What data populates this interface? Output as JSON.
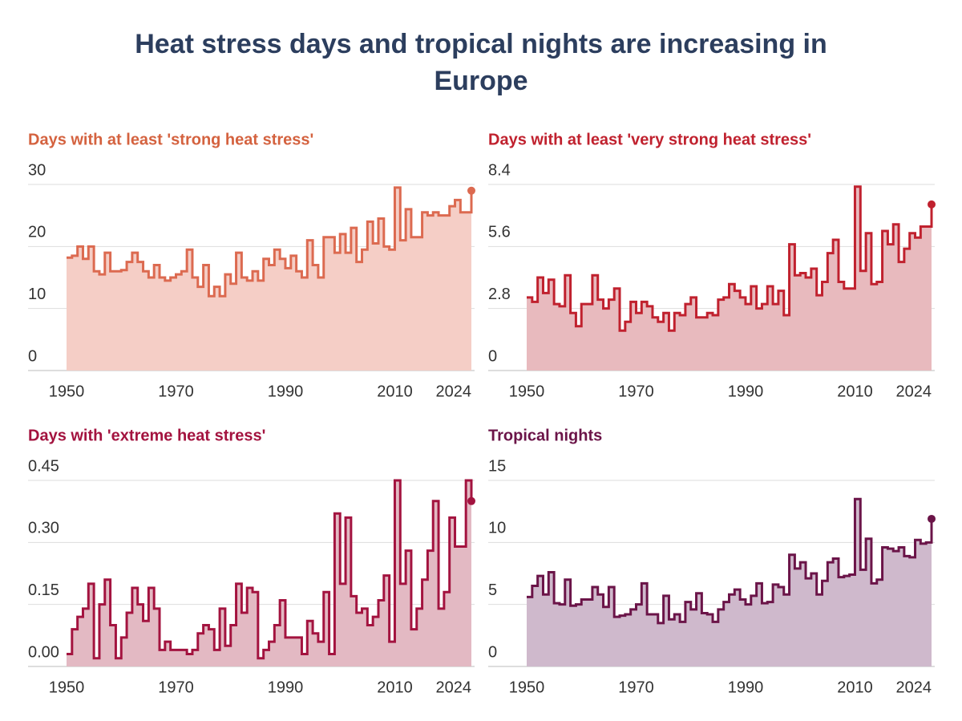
{
  "title": "Heat stress days and tropical nights are increasing in Europe",
  "chart_data": [
    {
      "type": "step",
      "title": "Days with at least 'strong heat stress'",
      "color": "#dc6a50",
      "fill": "#f5cec6",
      "title_color": "#d4623f",
      "x": [
        1950,
        1951,
        1952,
        1953,
        1954,
        1955,
        1956,
        1957,
        1958,
        1959,
        1960,
        1961,
        1962,
        1963,
        1964,
        1965,
        1966,
        1967,
        1968,
        1969,
        1970,
        1971,
        1972,
        1973,
        1974,
        1975,
        1976,
        1977,
        1978,
        1979,
        1980,
        1981,
        1982,
        1983,
        1984,
        1985,
        1986,
        1987,
        1988,
        1989,
        1990,
        1991,
        1992,
        1993,
        1994,
        1995,
        1996,
        1997,
        1998,
        1999,
        2000,
        2001,
        2002,
        2003,
        2004,
        2005,
        2006,
        2007,
        2008,
        2009,
        2010,
        2011,
        2012,
        2013,
        2014,
        2015,
        2016,
        2017,
        2018,
        2019,
        2020,
        2021,
        2022,
        2023,
        2024
      ],
      "values": [
        18.2,
        18.5,
        20,
        18,
        20,
        16,
        15.5,
        19,
        16,
        16,
        16.2,
        17.5,
        19,
        17.5,
        16,
        15,
        17,
        15,
        14.5,
        15,
        15.5,
        16,
        19.5,
        15,
        13.5,
        17,
        12,
        13.5,
        12,
        15.5,
        14,
        19,
        15,
        14.5,
        16,
        14.5,
        18,
        17,
        19.5,
        18,
        16.5,
        18.5,
        16,
        15,
        21,
        17,
        15,
        21.5,
        21.5,
        19,
        22,
        19,
        23,
        17.5,
        19.5,
        24,
        20.5,
        24.5,
        20,
        19.5,
        29.5,
        21,
        26,
        21.5,
        21.5,
        25.5,
        25,
        25.5,
        25,
        25,
        26.5,
        27.5,
        25.5,
        25.5,
        29
      ],
      "xlim": [
        1950,
        2024
      ],
      "xticks": [
        1950,
        1970,
        1990,
        2010,
        2024
      ],
      "ylim": [
        0,
        30
      ],
      "yticks": [
        0,
        10,
        20,
        30
      ],
      "grid": true
    },
    {
      "type": "step",
      "title": "Days with at least 'very strong heat stress'",
      "color": "#c0212e",
      "fill": "#e8babe",
      "title_color": "#c0212e",
      "x": [
        1950,
        1951,
        1952,
        1953,
        1954,
        1955,
        1956,
        1957,
        1958,
        1959,
        1960,
        1961,
        1962,
        1963,
        1964,
        1965,
        1966,
        1967,
        1968,
        1969,
        1970,
        1971,
        1972,
        1973,
        1974,
        1975,
        1976,
        1977,
        1978,
        1979,
        1980,
        1981,
        1982,
        1983,
        1984,
        1985,
        1986,
        1987,
        1988,
        1989,
        1990,
        1991,
        1992,
        1993,
        1994,
        1995,
        1996,
        1997,
        1998,
        1999,
        2000,
        2001,
        2002,
        2003,
        2004,
        2005,
        2006,
        2007,
        2008,
        2009,
        2010,
        2011,
        2012,
        2013,
        2014,
        2015,
        2016,
        2017,
        2018,
        2019,
        2020,
        2021,
        2022,
        2023,
        2024
      ],
      "values": [
        3.3,
        3.1,
        4.2,
        3.5,
        4.1,
        3.0,
        2.9,
        4.3,
        2.6,
        2.0,
        3.0,
        3.0,
        4.3,
        3.2,
        2.8,
        3.2,
        3.7,
        1.8,
        2.2,
        3.1,
        2.6,
        3.1,
        2.9,
        2.4,
        2.2,
        2.6,
        1.8,
        2.6,
        2.5,
        3.0,
        3.3,
        2.4,
        2.4,
        2.6,
        2.5,
        3.2,
        3.3,
        3.9,
        3.6,
        3.3,
        3.0,
        3.8,
        2.8,
        3.0,
        3.8,
        3.0,
        3.6,
        2.5,
        5.7,
        4.3,
        4.4,
        4.2,
        4.6,
        3.4,
        4.0,
        5.3,
        5.9,
        4.0,
        3.7,
        3.7,
        8.3,
        4.5,
        6.2,
        3.9,
        4.0,
        6.3,
        5.7,
        6.6,
        4.9,
        5.5,
        6.2,
        6.0,
        6.5,
        6.5,
        7.5
      ],
      "xlim": [
        1950,
        2024
      ],
      "xticks": [
        1950,
        1970,
        1990,
        2010,
        2024
      ],
      "ylim": [
        0,
        8.4
      ],
      "yticks": [
        0,
        2.8,
        5.6,
        8.4
      ],
      "grid": true
    },
    {
      "type": "step",
      "title": "Days with 'extreme heat stress'",
      "color": "#a3133f",
      "fill": "#e3b9c3",
      "title_color": "#a3133f",
      "x": [
        1950,
        1951,
        1952,
        1953,
        1954,
        1955,
        1956,
        1957,
        1958,
        1959,
        1960,
        1961,
        1962,
        1963,
        1964,
        1965,
        1966,
        1967,
        1968,
        1969,
        1970,
        1971,
        1972,
        1973,
        1974,
        1975,
        1976,
        1977,
        1978,
        1979,
        1980,
        1981,
        1982,
        1983,
        1984,
        1985,
        1986,
        1987,
        1988,
        1989,
        1990,
        1991,
        1992,
        1993,
        1994,
        1995,
        1996,
        1997,
        1998,
        1999,
        2000,
        2001,
        2002,
        2003,
        2004,
        2005,
        2006,
        2007,
        2008,
        2009,
        2010,
        2011,
        2012,
        2013,
        2014,
        2015,
        2016,
        2017,
        2018,
        2019,
        2020,
        2021,
        2022,
        2023,
        2024
      ],
      "values": [
        0.03,
        0.09,
        0.12,
        0.14,
        0.2,
        0.02,
        0.15,
        0.21,
        0.1,
        0.02,
        0.07,
        0.13,
        0.19,
        0.15,
        0.11,
        0.19,
        0.14,
        0.04,
        0.06,
        0.04,
        0.04,
        0.04,
        0.03,
        0.04,
        0.08,
        0.1,
        0.09,
        0.04,
        0.14,
        0.05,
        0.1,
        0.2,
        0.13,
        0.19,
        0.18,
        0.02,
        0.04,
        0.06,
        0.1,
        0.16,
        0.07,
        0.07,
        0.07,
        0.03,
        0.11,
        0.08,
        0.06,
        0.18,
        0.03,
        0.37,
        0.2,
        0.36,
        0.17,
        0.13,
        0.14,
        0.1,
        0.12,
        0.16,
        0.22,
        0.06,
        0.45,
        0.2,
        0.28,
        0.09,
        0.14,
        0.21,
        0.28,
        0.4,
        0.14,
        0.18,
        0.36,
        0.29,
        0.29,
        0.45,
        0.4
      ],
      "xlim": [
        1950,
        2024
      ],
      "xticks": [
        1950,
        1970,
        1990,
        2010,
        2024
      ],
      "ylim": [
        0,
        0.45
      ],
      "yticks": [
        {
          "value": 0,
          "label": "0.00"
        },
        0.15,
        {
          "value": 0.3,
          "label": "0.30"
        },
        0.45
      ],
      "grid": true
    },
    {
      "type": "step",
      "title": "Tropical nights",
      "color": "#6b1448",
      "fill": "#cfb9cc",
      "title_color": "#6b1448",
      "x": [
        1950,
        1951,
        1952,
        1953,
        1954,
        1955,
        1956,
        1957,
        1958,
        1959,
        1960,
        1961,
        1962,
        1963,
        1964,
        1965,
        1966,
        1967,
        1968,
        1969,
        1970,
        1971,
        1972,
        1973,
        1974,
        1975,
        1976,
        1977,
        1978,
        1979,
        1980,
        1981,
        1982,
        1983,
        1984,
        1985,
        1986,
        1987,
        1988,
        1989,
        1990,
        1991,
        1992,
        1993,
        1994,
        1995,
        1996,
        1997,
        1998,
        1999,
        2000,
        2001,
        2002,
        2003,
        2004,
        2005,
        2006,
        2007,
        2008,
        2009,
        2010,
        2011,
        2012,
        2013,
        2014,
        2015,
        2016,
        2017,
        2018,
        2019,
        2020,
        2021,
        2022,
        2023,
        2024
      ],
      "values": [
        5.6,
        6.5,
        7.3,
        5.8,
        7.6,
        5.1,
        5.0,
        7.0,
        4.9,
        5.0,
        5.4,
        5.4,
        6.4,
        5.8,
        4.8,
        6.4,
        4.0,
        4.1,
        4.2,
        4.6,
        5.0,
        6.7,
        4.2,
        4.2,
        3.5,
        5.7,
        3.8,
        4.2,
        3.6,
        5.2,
        4.6,
        5.9,
        4.3,
        4.2,
        3.6,
        4.6,
        5.2,
        5.8,
        6.2,
        5.4,
        5.0,
        5.7,
        6.7,
        5.1,
        5.2,
        6.6,
        6.4,
        5.8,
        9.0,
        7.9,
        8.4,
        7.1,
        7.5,
        5.8,
        6.9,
        8.4,
        8.7,
        7.2,
        7.3,
        7.4,
        13.5,
        7.8,
        10.3,
        6.7,
        7.0,
        9.6,
        9.5,
        9.3,
        9.6,
        8.9,
        8.8,
        10.2,
        9.9,
        10.0,
        11.9
      ],
      "xlim": [
        1950,
        2024
      ],
      "xticks": [
        1950,
        1970,
        1990,
        2010,
        2024
      ],
      "ylim": [
        0,
        15
      ],
      "yticks": [
        0,
        5,
        10,
        15
      ],
      "grid": true
    }
  ]
}
